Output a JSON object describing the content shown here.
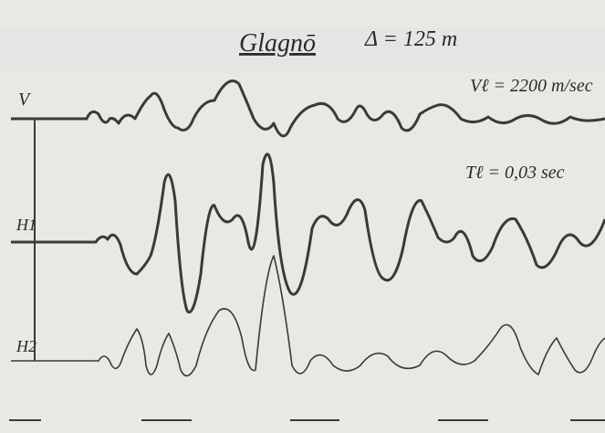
{
  "header": {
    "title": "Glagnō",
    "distance": "Δ = 125 m"
  },
  "annotations": {
    "velocity": "Vℓ = 2200 m/sec",
    "period": "Tℓ = 0,03 sec"
  },
  "traces": [
    {
      "label": "V"
    },
    {
      "label": "H1"
    },
    {
      "label": "H2"
    }
  ]
}
